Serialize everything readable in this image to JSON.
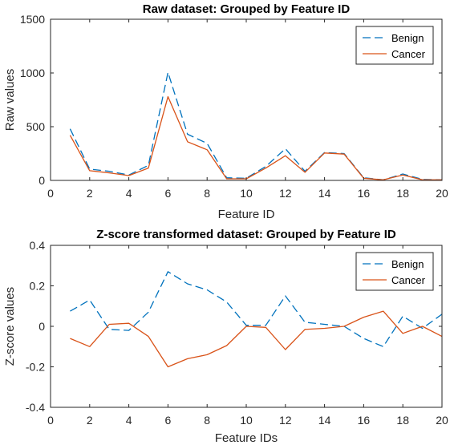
{
  "colors": {
    "benign": "#0072BD",
    "cancer": "#D95319",
    "axis": "#262626"
  },
  "chart_data": [
    {
      "type": "line",
      "title": "Raw dataset: Grouped by Feature ID",
      "xlabel": "Feature ID",
      "ylabel": "Raw values",
      "xlim": [
        0,
        20
      ],
      "ylim": [
        0,
        1500
      ],
      "xticks": [
        0,
        2,
        4,
        6,
        8,
        10,
        12,
        14,
        16,
        18,
        20
      ],
      "yticks": [
        0,
        500,
        1000,
        1500
      ],
      "xtick_labels": [
        "0",
        "2",
        "4",
        "6",
        "8",
        "10",
        "12",
        "14",
        "16",
        "18",
        "20"
      ],
      "ytick_labels": [
        "0",
        "500",
        "1000",
        "1500"
      ],
      "legend_position": "top-right",
      "x": [
        1,
        2,
        3,
        4,
        5,
        6,
        7,
        8,
        9,
        10,
        11,
        12,
        13,
        14,
        15,
        16,
        17,
        18,
        19,
        20
      ],
      "series": [
        {
          "name": "Benign",
          "style": "dashed",
          "values": [
            480,
            105,
            85,
            50,
            140,
            1005,
            430,
            345,
            25,
            20,
            130,
            295,
            85,
            260,
            250,
            25,
            5,
            60,
            10,
            5
          ]
        },
        {
          "name": "Cancer",
          "style": "solid",
          "values": [
            420,
            90,
            70,
            45,
            115,
            780,
            360,
            285,
            15,
            15,
            115,
            230,
            75,
            255,
            245,
            20,
            5,
            50,
            5,
            5
          ]
        }
      ]
    },
    {
      "type": "line",
      "title": "Z-score transformed dataset: Grouped by Feature ID",
      "xlabel": "Feature IDs",
      "ylabel": "Z-score values",
      "xlim": [
        0,
        20
      ],
      "ylim": [
        -0.4,
        0.4
      ],
      "xticks": [
        0,
        2,
        4,
        6,
        8,
        10,
        12,
        14,
        16,
        18,
        20
      ],
      "yticks": [
        -0.4,
        -0.2,
        0,
        0.2,
        0.4
      ],
      "xtick_labels": [
        "0",
        "2",
        "4",
        "6",
        "8",
        "10",
        "12",
        "14",
        "16",
        "18",
        "20"
      ],
      "ytick_labels": [
        "-0.4",
        "-0.2",
        "0",
        "0.2",
        "0.4"
      ],
      "legend_position": "top-right",
      "x": [
        1,
        2,
        3,
        4,
        5,
        6,
        7,
        8,
        9,
        10,
        11,
        12,
        13,
        14,
        15,
        16,
        17,
        18,
        19,
        20
      ],
      "series": [
        {
          "name": "Benign",
          "style": "dashed",
          "values": [
            0.075,
            0.13,
            -0.015,
            -0.02,
            0.07,
            0.27,
            0.21,
            0.18,
            0.12,
            0.005,
            0.005,
            0.15,
            0.02,
            0.01,
            0.0,
            -0.06,
            -0.1,
            0.05,
            -0.01,
            0.06
          ]
        },
        {
          "name": "Cancer",
          "style": "solid",
          "values": [
            -0.06,
            -0.1,
            0.01,
            0.015,
            -0.05,
            -0.2,
            -0.16,
            -0.14,
            -0.095,
            0.0,
            -0.005,
            -0.115,
            -0.015,
            -0.01,
            0.0,
            0.045,
            0.075,
            -0.035,
            0.0,
            -0.05
          ]
        }
      ]
    }
  ]
}
